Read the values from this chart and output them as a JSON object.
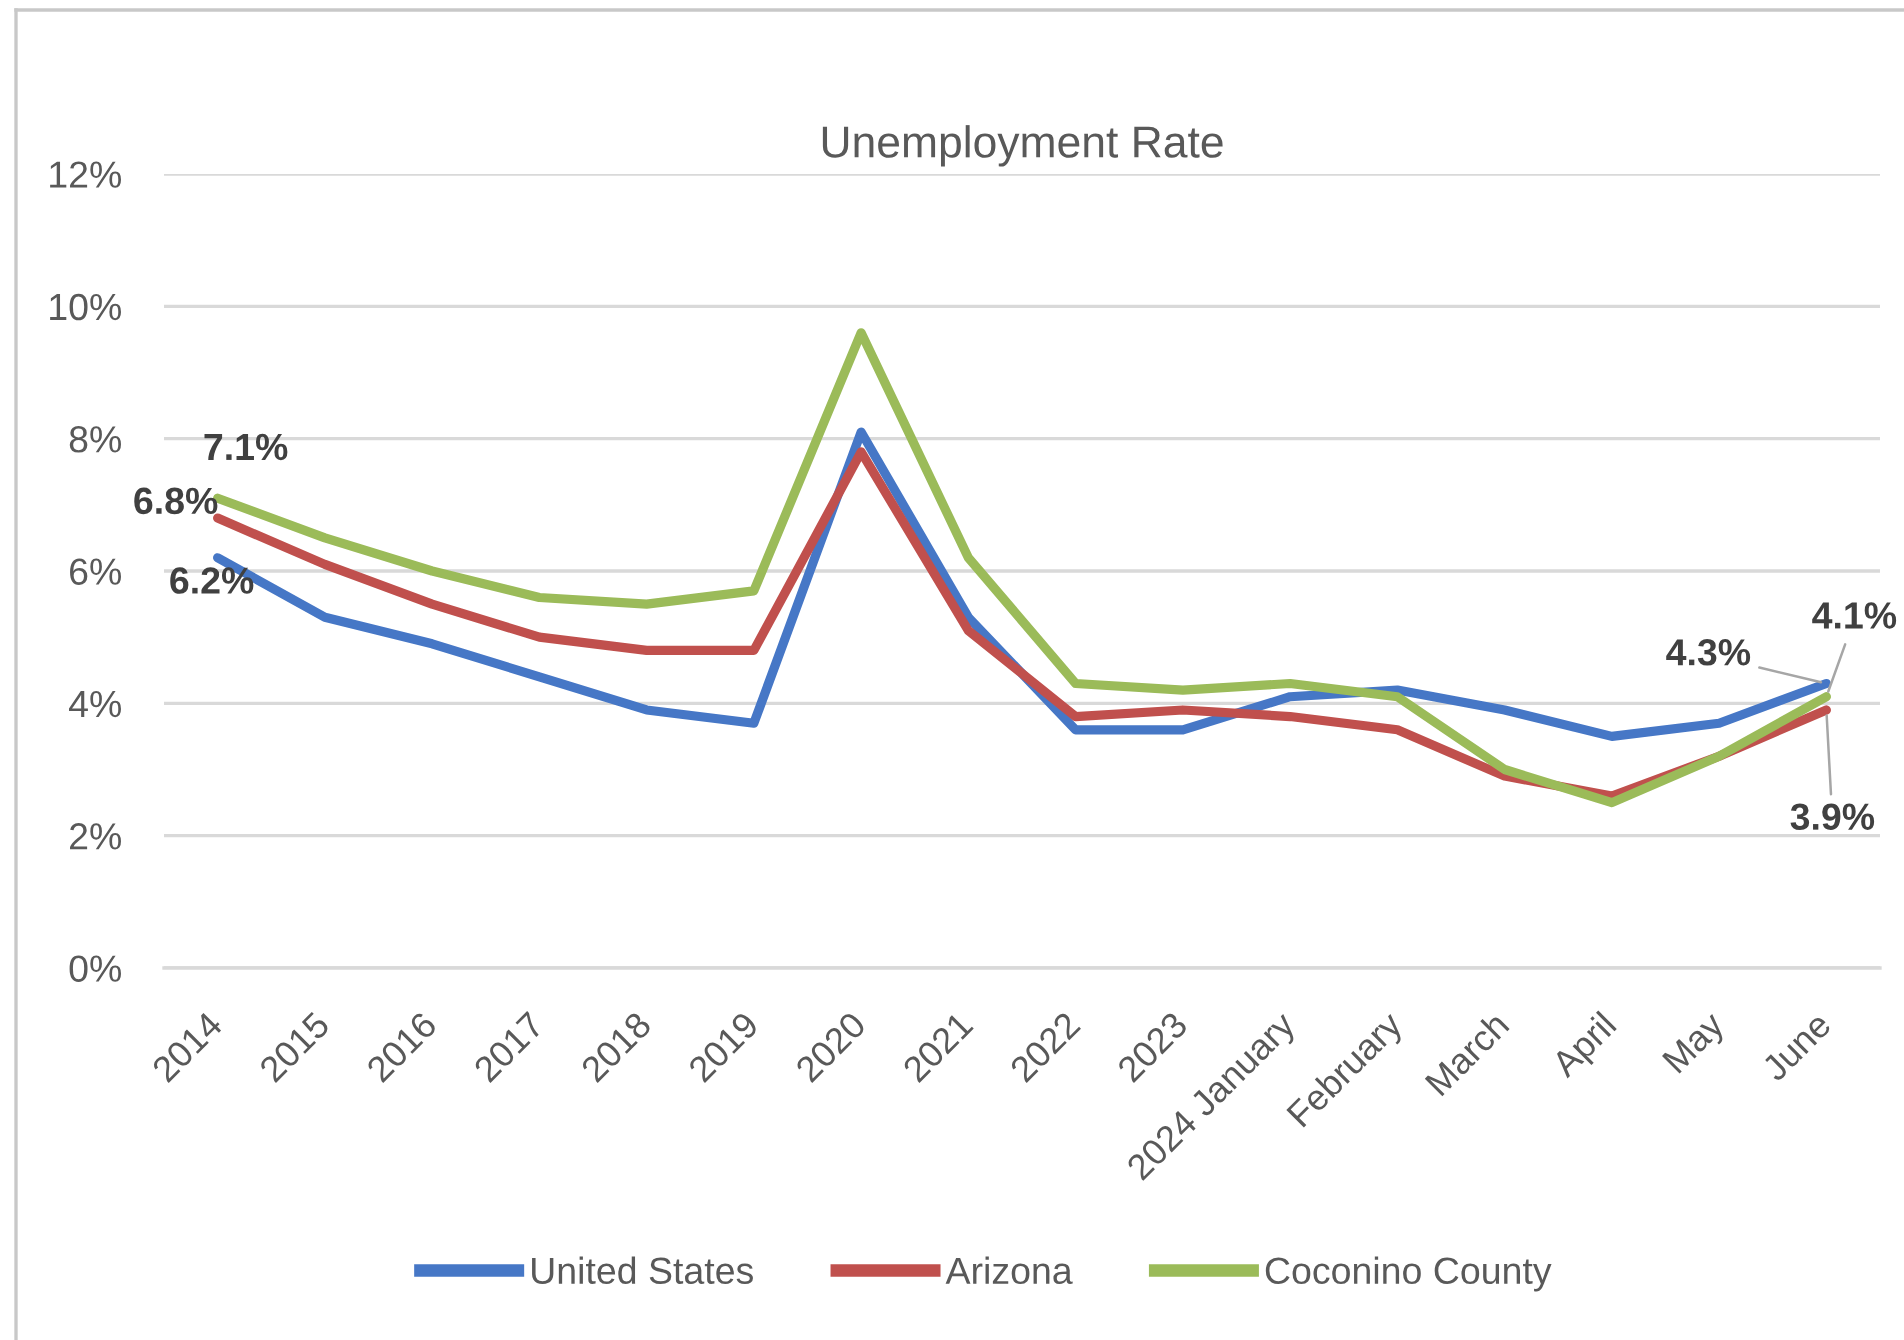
{
  "chart_data": {
    "type": "line",
    "title": "Unemployment Rate",
    "categories": [
      "2014",
      "2015",
      "2016",
      "2017",
      "2018",
      "2019",
      "2020",
      "2021",
      "2022",
      "2023",
      "2024 January",
      "February",
      "March",
      "April",
      "May",
      "June"
    ],
    "series": [
      {
        "name": "United States",
        "color": "#4677c6",
        "values": [
          6.2,
          5.3,
          4.9,
          4.4,
          3.9,
          3.7,
          8.1,
          5.3,
          3.6,
          3.6,
          4.1,
          4.2,
          3.9,
          3.5,
          3.7,
          4.3
        ],
        "value_labels": [
          "6.2%",
          null,
          null,
          null,
          null,
          null,
          null,
          null,
          null,
          null,
          null,
          null,
          null,
          null,
          null,
          "4.3%"
        ]
      },
      {
        "name": "Arizona",
        "color": "#c0504d",
        "values": [
          6.8,
          6.1,
          5.5,
          5.0,
          4.8,
          4.8,
          7.8,
          5.1,
          3.8,
          3.9,
          3.8,
          3.6,
          2.9,
          2.6,
          3.2,
          3.9
        ],
        "value_labels": [
          "6.8%",
          null,
          null,
          null,
          null,
          null,
          null,
          null,
          null,
          null,
          null,
          null,
          null,
          null,
          null,
          "3.9%"
        ]
      },
      {
        "name": "Coconino County",
        "color": "#9bbb59",
        "values": [
          7.1,
          6.5,
          6.0,
          5.6,
          5.5,
          5.7,
          9.6,
          6.2,
          4.3,
          4.2,
          4.3,
          4.1,
          3.0,
          2.5,
          3.2,
          4.1
        ],
        "value_labels": [
          "7.1%",
          null,
          null,
          null,
          null,
          null,
          null,
          null,
          null,
          null,
          null,
          null,
          null,
          null,
          null,
          "4.1%"
        ]
      }
    ],
    "ylim": [
      0,
      12
    ],
    "yticks": [
      {
        "value": 0,
        "label": "0%"
      },
      {
        "value": 2,
        "label": "2%"
      },
      {
        "value": 4,
        "label": "4%"
      },
      {
        "value": 6,
        "label": "6%"
      },
      {
        "value": 8,
        "label": "8%"
      },
      {
        "value": 10,
        "label": "10%"
      },
      {
        "value": 12,
        "label": "12%"
      }
    ],
    "grid": "y",
    "legend": "bottom",
    "line_style": "solid"
  }
}
